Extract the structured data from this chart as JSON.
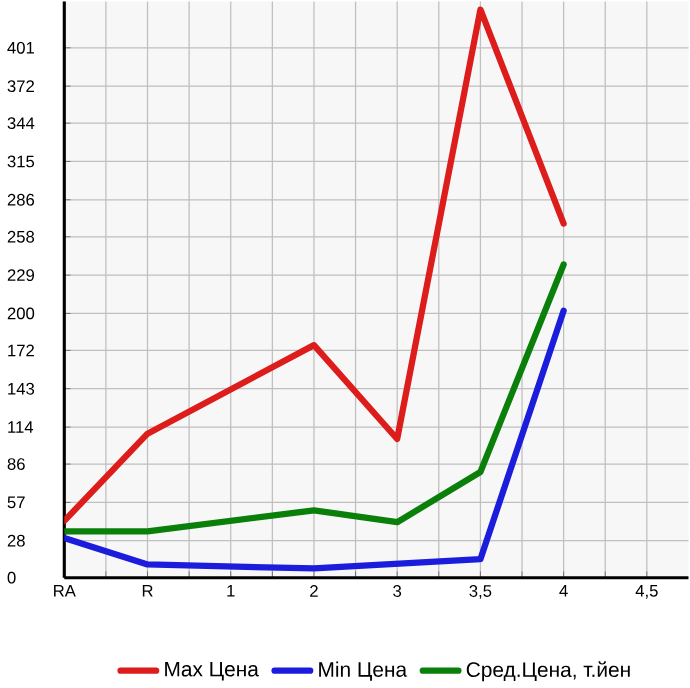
{
  "chart_data": {
    "type": "line",
    "categories": [
      "RA",
      "R",
      "1",
      "2",
      "3",
      "3,5",
      "4",
      "4,5"
    ],
    "series": [
      {
        "name": "Max Цена",
        "color": "#dd1c1c",
        "values": [
          43,
          109,
          null,
          176,
          105,
          430,
          268,
          null
        ]
      },
      {
        "name": "Min Цена",
        "color": "#1c1cdd",
        "values": [
          30,
          10,
          null,
          7,
          null,
          14,
          202,
          null
        ]
      },
      {
        "name": "Сред.Цена, т.йен",
        "color": "#0a800a",
        "values": [
          35,
          35,
          null,
          51,
          42,
          80,
          237,
          null
        ]
      }
    ],
    "ylim": [
      0,
      436
    ],
    "yticks": [
      0,
      28,
      57,
      86,
      114,
      143,
      172,
      200,
      229,
      258,
      286,
      315,
      344,
      372,
      401
    ],
    "grid": true,
    "legend": "bottom",
    "marker": "none",
    "line_style": "solid"
  }
}
